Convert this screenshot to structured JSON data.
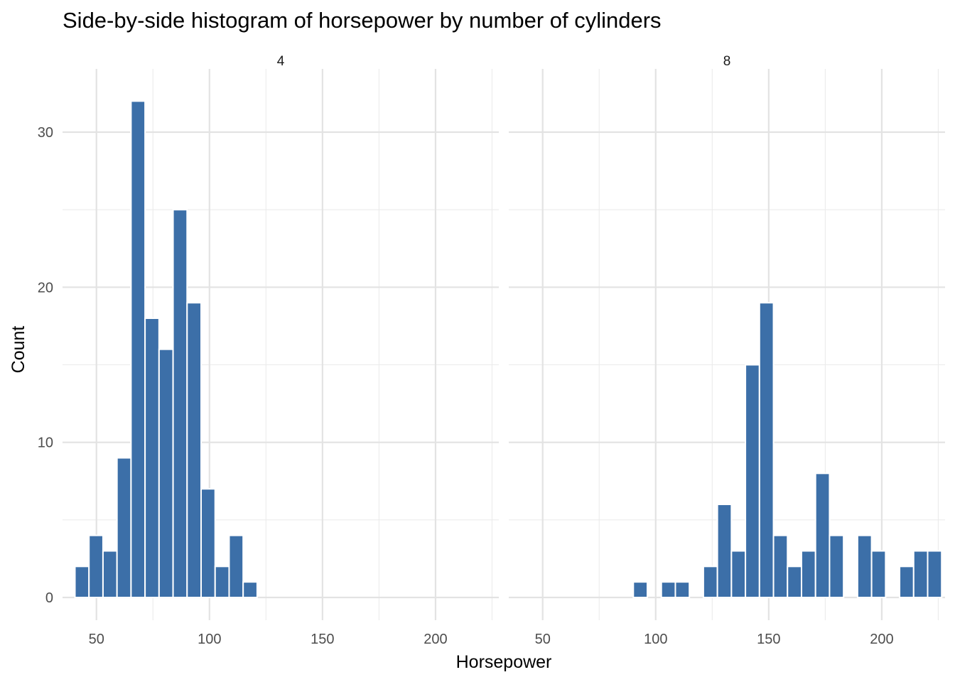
{
  "chart_data": {
    "type": "bar",
    "title": "Side-by-side histogram of horsepower by number of cylinders",
    "xlabel": "Horsepower",
    "ylabel": "Count",
    "xlim": [
      35,
      228
    ],
    "ylim": [
      0,
      33
    ],
    "x_ticks": [
      50,
      100,
      150,
      200
    ],
    "y_ticks": [
      0,
      10,
      20,
      30
    ],
    "grid": true,
    "bar_color": "#3c6fa8",
    "bin_width": 6.2,
    "panels": [
      {
        "label": "4",
        "bin_centers": [
          43.6,
          49.8,
          56.0,
          62.2,
          68.4,
          74.6,
          80.8,
          87.0,
          93.2,
          99.4,
          105.6,
          111.8,
          118.0
        ],
        "values": [
          2,
          4,
          3,
          9,
          32,
          18,
          16,
          25,
          19,
          7,
          2,
          4,
          1
        ]
      },
      {
        "label": "8",
        "bin_centers": [
          93.2,
          105.6,
          111.8,
          124.2,
          130.4,
          136.6,
          142.8,
          149.0,
          155.2,
          161.4,
          167.6,
          173.8,
          180.0,
          192.4,
          198.6,
          211.0,
          217.2,
          223.4
        ],
        "values": [
          1,
          1,
          1,
          2,
          6,
          3,
          15,
          19,
          4,
          2,
          3,
          8,
          4,
          4,
          3,
          2,
          3,
          3
        ]
      }
    ]
  }
}
